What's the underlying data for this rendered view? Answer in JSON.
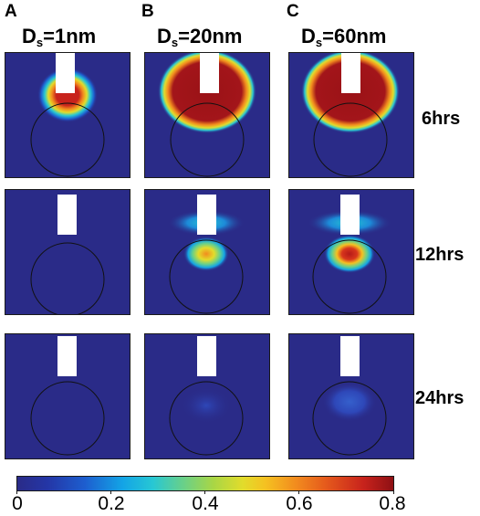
{
  "panel_letters": [
    "A",
    "B",
    "C"
  ],
  "columns": [
    {
      "prefix": "D",
      "sub": "s",
      "suffix": "=1nm"
    },
    {
      "prefix": "D",
      "sub": "s",
      "suffix": "=20nm"
    },
    {
      "prefix": "D",
      "sub": "s",
      "suffix": "=60nm"
    }
  ],
  "rows": [
    "6hrs",
    "12hrs",
    "24hrs"
  ],
  "colorbar": {
    "ticks": [
      "0",
      "0.2",
      "0.4",
      "0.6",
      "0.8"
    ],
    "colors": [
      "#2a2b88",
      "#1d5ecf",
      "#13a4e6",
      "#68d08a",
      "#e2dc2b",
      "#f28c1e",
      "#c8231c",
      "#8e1014"
    ]
  }
}
